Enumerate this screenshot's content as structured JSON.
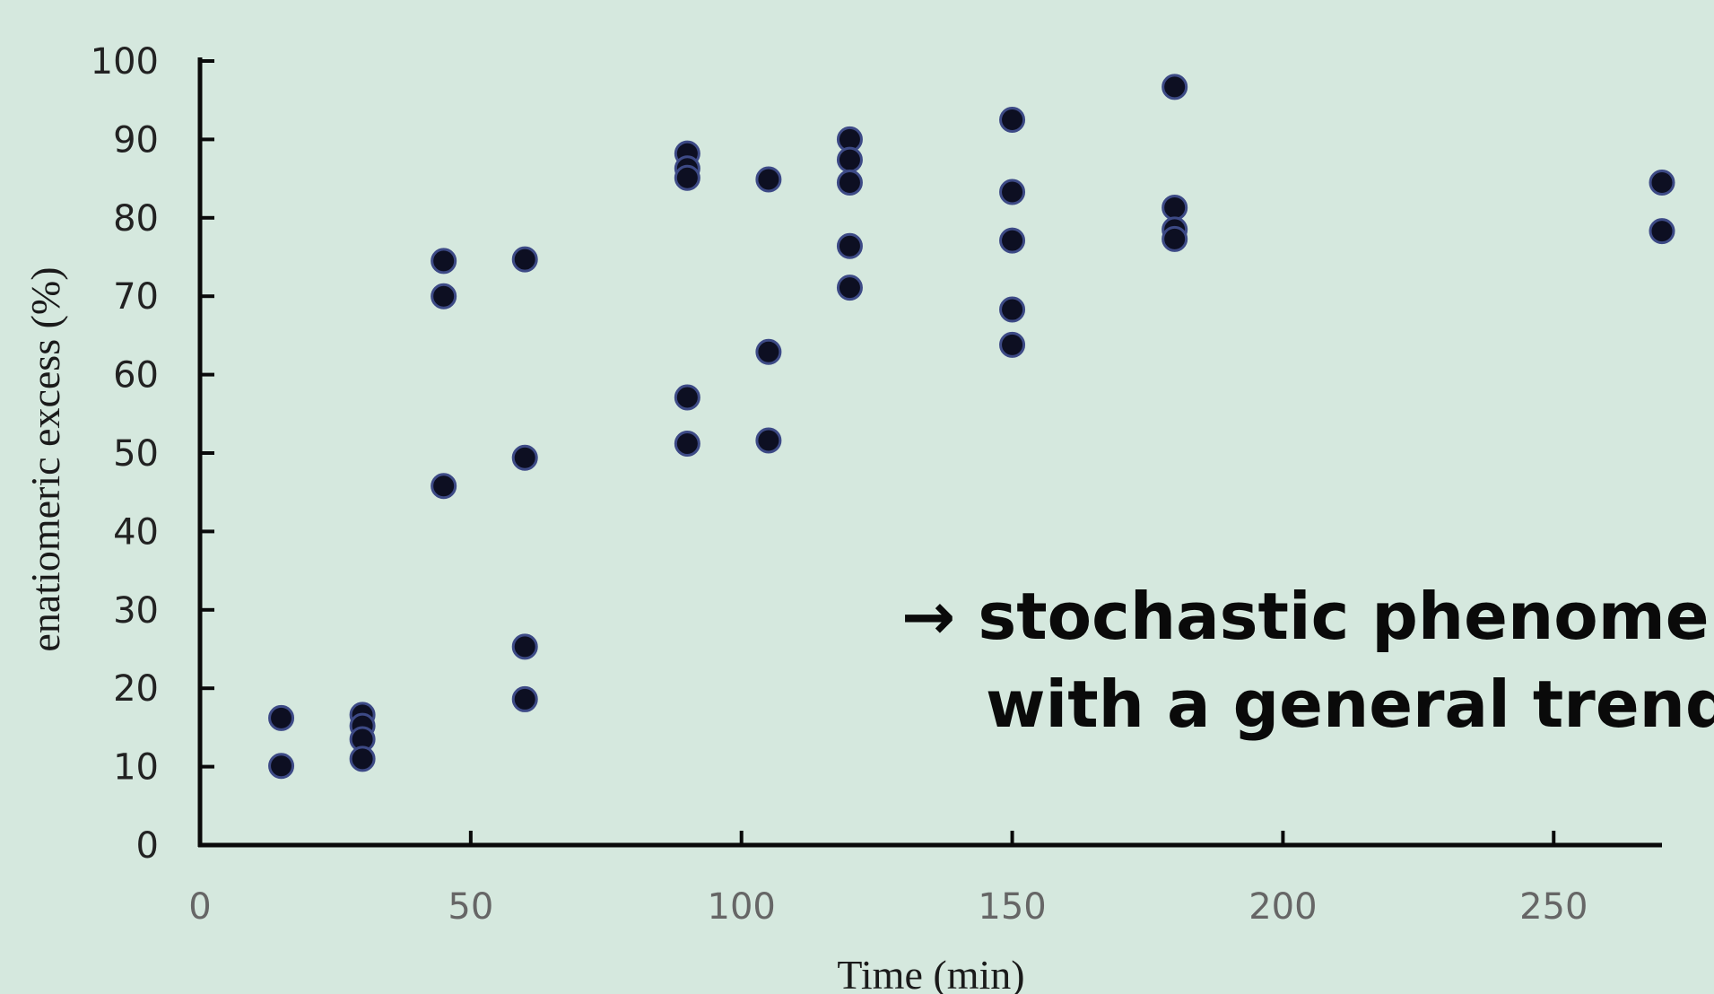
{
  "chart_data": {
    "type": "scatter",
    "title": "",
    "xlabel": "Time (min)",
    "ylabel": "enatiomeric excess (%)",
    "xlim": [
      0,
      270
    ],
    "ylim": [
      0,
      100
    ],
    "xticks": [
      0,
      50,
      100,
      150,
      200,
      250
    ],
    "yticks": [
      0,
      10,
      20,
      30,
      40,
      50,
      60,
      70,
      80,
      90,
      100
    ],
    "grid": false,
    "legend": "none",
    "marker_color": "#0d0f22",
    "marker_edge_color": "#3d4a86",
    "series": [
      {
        "points": [
          [
            15,
            16.2
          ],
          [
            15,
            10.1
          ],
          [
            30,
            16.6
          ],
          [
            30,
            15.2
          ],
          [
            30,
            13.5
          ],
          [
            30,
            11.0
          ],
          [
            45,
            74.5
          ],
          [
            45,
            70.0
          ],
          [
            45,
            45.8
          ],
          [
            60,
            74.7
          ],
          [
            60,
            49.4
          ],
          [
            60,
            25.3
          ],
          [
            60,
            18.6
          ],
          [
            90,
            88.2
          ],
          [
            90,
            86.3
          ],
          [
            90,
            85.1
          ],
          [
            90,
            57.1
          ],
          [
            90,
            51.2
          ],
          [
            105,
            84.9
          ],
          [
            105,
            62.9
          ],
          [
            105,
            51.6
          ],
          [
            120,
            90.0
          ],
          [
            120,
            87.4
          ],
          [
            120,
            84.5
          ],
          [
            120,
            76.4
          ],
          [
            120,
            71.1
          ],
          [
            150,
            92.5
          ],
          [
            150,
            83.3
          ],
          [
            150,
            77.1
          ],
          [
            150,
            68.3
          ],
          [
            150,
            63.8
          ],
          [
            180,
            96.7
          ],
          [
            180,
            81.3
          ],
          [
            180,
            78.5
          ],
          [
            180,
            77.3
          ],
          [
            270,
            84.5
          ],
          [
            270,
            78.3
          ]
        ]
      }
    ]
  },
  "annotation": {
    "line1": "→ stochastic phenomena",
    "line2": "with a general trend"
  }
}
